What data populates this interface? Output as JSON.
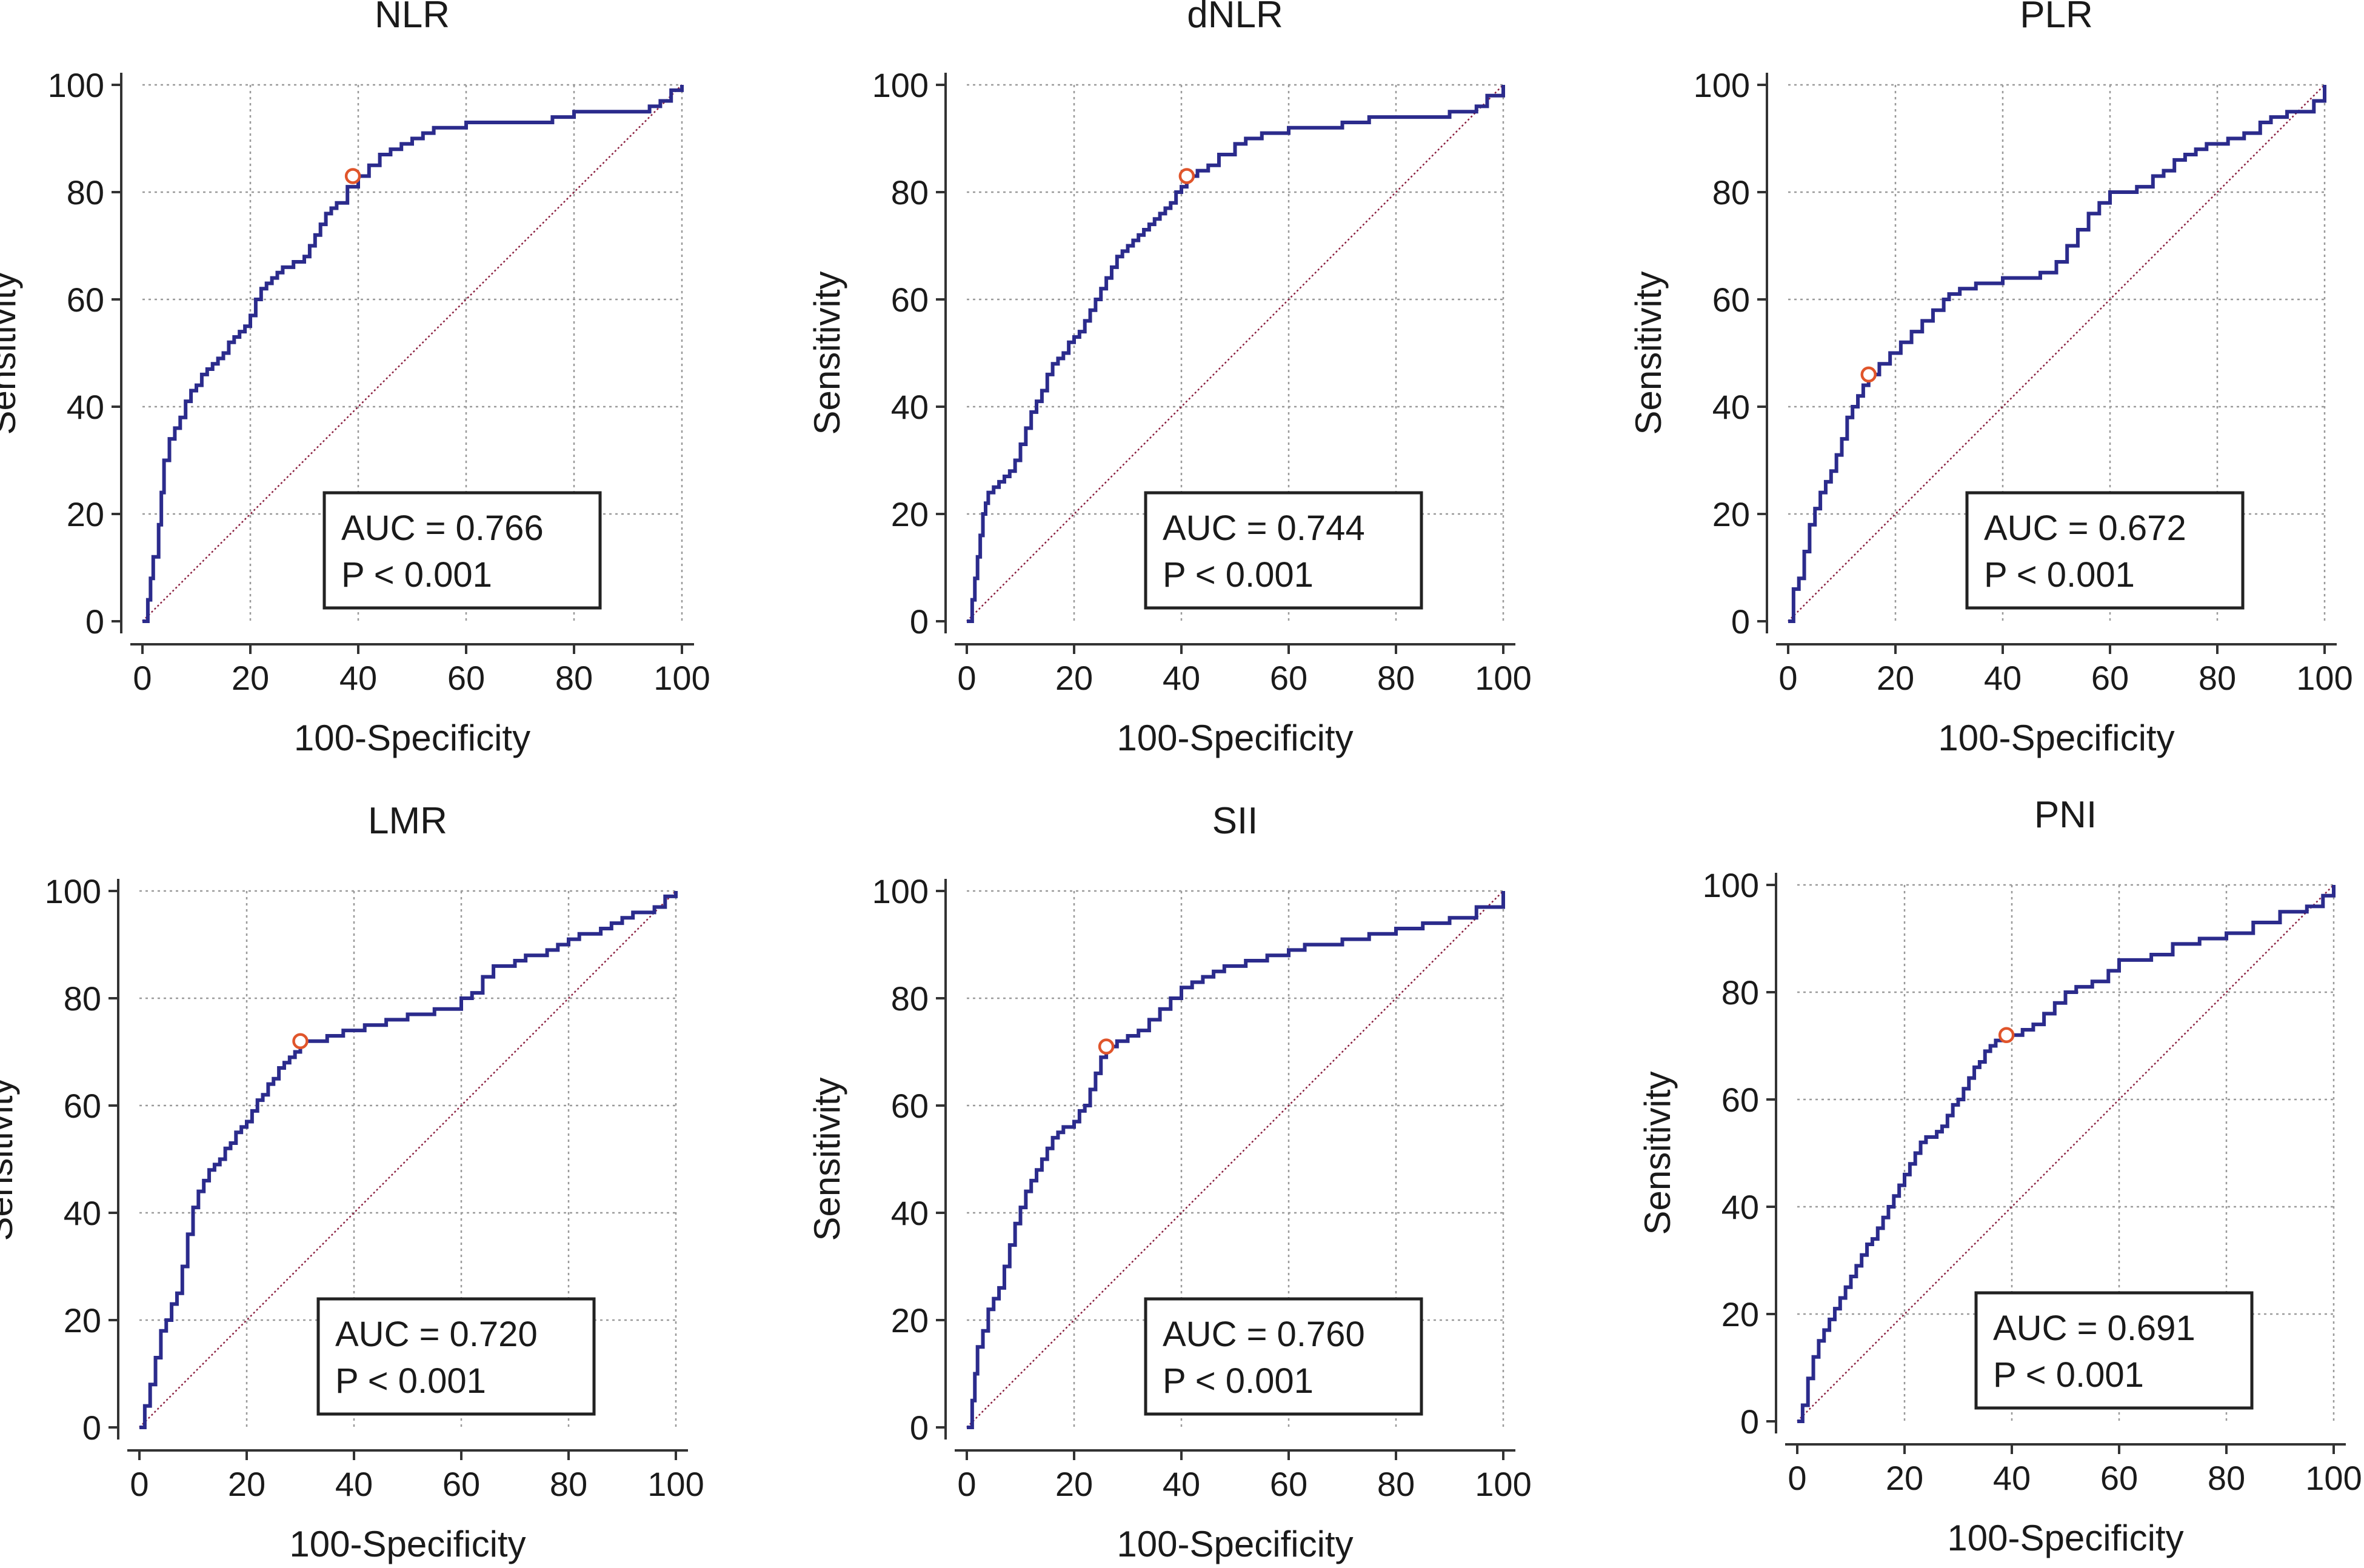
{
  "colors": {
    "roc": "#2b2b8c",
    "cutoff": "#e0552b",
    "diagonal": "#8b2040",
    "grid": "#9a9a9a",
    "axis": "#333333"
  },
  "chart_data": [
    {
      "type": "line",
      "title": "NLR",
      "xlabel": "100-Specificity",
      "ylabel": "Sensitivity",
      "xlim": [
        0,
        100
      ],
      "ylim": [
        0,
        100
      ],
      "xticks": [
        "0",
        "20",
        "40",
        "60",
        "80",
        "100"
      ],
      "yticks": [
        "0",
        "20",
        "40",
        "60",
        "80",
        "100"
      ],
      "auc_text": "AUC = 0.766",
      "p_text": "P < 0.001",
      "cutoff_point": {
        "x": 39,
        "y": 83
      },
      "series": [
        {
          "name": "ROC",
          "x": [
            0,
            1,
            1.5,
            2,
            3,
            3.5,
            4,
            5,
            6,
            7,
            8,
            9,
            10,
            11,
            12,
            13,
            14,
            15,
            16,
            17,
            18,
            19,
            20,
            21,
            22,
            23,
            24,
            25,
            26,
            27,
            28,
            30,
            31,
            32,
            33,
            34,
            35,
            36,
            38,
            40,
            42,
            44,
            46,
            48,
            50,
            52,
            54,
            56,
            60,
            62,
            64,
            68,
            72,
            76,
            80,
            84,
            88,
            90,
            92,
            94,
            96,
            98,
            100
          ],
          "y": [
            0,
            4,
            8,
            12,
            18,
            24,
            30,
            34,
            36,
            38,
            41,
            43,
            44,
            46,
            47,
            48,
            49,
            50,
            52,
            53,
            54,
            55,
            57,
            60,
            62,
            63,
            64,
            65,
            66,
            66,
            67,
            68,
            70,
            72,
            74,
            76,
            77,
            78,
            81,
            83,
            85,
            87,
            88,
            89,
            90,
            91,
            92,
            92,
            93,
            93,
            93,
            93,
            93,
            94,
            95,
            95,
            95,
            95,
            95,
            96,
            97,
            99,
            100
          ]
        }
      ]
    },
    {
      "type": "line",
      "title": "dNLR",
      "xlabel": "100-Specificity",
      "ylabel": "Sensitivity",
      "xlim": [
        0,
        100
      ],
      "ylim": [
        0,
        100
      ],
      "xticks": [
        "0",
        "20",
        "40",
        "60",
        "80",
        "100"
      ],
      "yticks": [
        "0",
        "20",
        "40",
        "60",
        "80",
        "100"
      ],
      "auc_text": "AUC = 0.744",
      "p_text": "P < 0.001",
      "cutoff_point": {
        "x": 41,
        "y": 83
      },
      "series": [
        {
          "name": "ROC",
          "x": [
            0,
            1,
            1.5,
            2,
            2.5,
            3,
            3.5,
            4,
            5,
            6,
            7,
            8,
            9,
            10,
            11,
            12,
            13,
            14,
            15,
            16,
            17,
            18,
            19,
            20,
            21,
            22,
            23,
            24,
            25,
            26,
            27,
            28,
            29,
            30,
            31,
            32,
            33,
            34,
            35,
            36,
            37,
            38,
            39,
            40,
            41,
            43,
            45,
            47,
            50,
            52,
            55,
            60,
            65,
            70,
            75,
            80,
            85,
            90,
            92,
            95,
            97,
            100
          ],
          "y": [
            0,
            4,
            8,
            12,
            16,
            20,
            22,
            24,
            25,
            26,
            27,
            28,
            30,
            33,
            36,
            39,
            41,
            43,
            46,
            48,
            49,
            50,
            52,
            53,
            54,
            56,
            58,
            60,
            62,
            64,
            66,
            68,
            69,
            70,
            71,
            72,
            73,
            74,
            75,
            76,
            77,
            78,
            80,
            81,
            83,
            84,
            85,
            87,
            89,
            90,
            91,
            92,
            92,
            93,
            94,
            94,
            94,
            95,
            95,
            96,
            98,
            100
          ]
        }
      ]
    },
    {
      "type": "line",
      "title": "PLR",
      "xlabel": "100-Specificity",
      "ylabel": "Sensitivity",
      "xlim": [
        0,
        100
      ],
      "ylim": [
        0,
        100
      ],
      "xticks": [
        "0",
        "20",
        "40",
        "60",
        "80",
        "100"
      ],
      "yticks": [
        "0",
        "20",
        "40",
        "60",
        "80",
        "100"
      ],
      "auc_text": "AUC = 0.672",
      "p_text": "P < 0.001",
      "cutoff_point": {
        "x": 15,
        "y": 46
      },
      "series": [
        {
          "name": "ROC",
          "x": [
            0,
            1,
            2,
            3,
            4,
            5,
            6,
            7,
            8,
            9,
            10,
            11,
            12,
            13,
            14,
            15,
            17,
            19,
            21,
            23,
            25,
            27,
            29,
            30,
            32,
            35,
            40,
            45,
            47,
            50,
            52,
            54,
            56,
            58,
            60,
            62,
            65,
            68,
            70,
            72,
            74,
            76,
            78,
            80,
            82,
            85,
            88,
            90,
            93,
            96,
            98,
            100
          ],
          "y": [
            0,
            6,
            8,
            13,
            18,
            21,
            24,
            26,
            28,
            31,
            34,
            38,
            40,
            42,
            44,
            46,
            48,
            50,
            52,
            54,
            56,
            58,
            60,
            61,
            62,
            63,
            64,
            64,
            65,
            67,
            70,
            73,
            76,
            78,
            80,
            80,
            81,
            83,
            84,
            86,
            87,
            88,
            89,
            89,
            90,
            91,
            93,
            94,
            95,
            95,
            97,
            100
          ]
        }
      ]
    },
    {
      "type": "line",
      "title": "LMR",
      "xlabel": "100-Specificity",
      "ylabel": "Sensitivity",
      "xlim": [
        0,
        100
      ],
      "ylim": [
        0,
        100
      ],
      "xticks": [
        "0",
        "20",
        "40",
        "60",
        "80",
        "100"
      ],
      "yticks": [
        "0",
        "20",
        "40",
        "60",
        "80",
        "100"
      ],
      "auc_text": "AUC = 0.720",
      "p_text": "P < 0.001",
      "cutoff_point": {
        "x": 30,
        "y": 72
      },
      "series": [
        {
          "name": "ROC",
          "x": [
            0,
            1,
            2,
            3,
            4,
            5,
            6,
            7,
            8,
            9,
            10,
            11,
            12,
            13,
            14,
            15,
            16,
            17,
            18,
            19,
            20,
            21,
            22,
            23,
            24,
            25,
            26,
            27,
            28,
            29,
            30,
            32,
            35,
            38,
            42,
            46,
            50,
            55,
            60,
            62,
            64,
            66,
            68,
            70,
            72,
            74,
            76,
            78,
            80,
            82,
            84,
            86,
            88,
            90,
            92,
            94,
            96,
            98,
            100
          ],
          "y": [
            0,
            4,
            8,
            13,
            18,
            20,
            23,
            25,
            30,
            36,
            41,
            44,
            46,
            48,
            49,
            50,
            52,
            53,
            55,
            56,
            57,
            59,
            61,
            62,
            64,
            65,
            67,
            68,
            69,
            70,
            72,
            72,
            73,
            74,
            75,
            76,
            77,
            78,
            80,
            81,
            84,
            86,
            86,
            87,
            88,
            88,
            89,
            90,
            91,
            92,
            92,
            93,
            94,
            95,
            96,
            96,
            97,
            99,
            100
          ]
        }
      ]
    },
    {
      "type": "line",
      "title": "SII",
      "xlabel": "100-Specificity",
      "ylabel": "Sensitivity",
      "xlim": [
        0,
        100
      ],
      "ylim": [
        0,
        100
      ],
      "xticks": [
        "0",
        "20",
        "40",
        "60",
        "80",
        "100"
      ],
      "yticks": [
        "0",
        "20",
        "40",
        "60",
        "80",
        "100"
      ],
      "auc_text": "AUC = 0.760",
      "p_text": "P < 0.001",
      "cutoff_point": {
        "x": 26,
        "y": 71
      },
      "series": [
        {
          "name": "ROC",
          "x": [
            0,
            1,
            1.5,
            2,
            3,
            4,
            5,
            6,
            7,
            8,
            9,
            10,
            11,
            12,
            13,
            14,
            15,
            16,
            17,
            18,
            19,
            20,
            21,
            22,
            23,
            24,
            25,
            26,
            28,
            30,
            32,
            34,
            36,
            38,
            40,
            42,
            44,
            46,
            48,
            50,
            52,
            54,
            56,
            58,
            60,
            63,
            66,
            70,
            75,
            80,
            85,
            90,
            95,
            100
          ],
          "y": [
            0,
            5,
            10,
            15,
            18,
            22,
            24,
            26,
            30,
            34,
            38,
            41,
            44,
            46,
            48,
            50,
            52,
            54,
            55,
            56,
            56,
            57,
            59,
            60,
            63,
            66,
            69,
            71,
            72,
            73,
            74,
            76,
            78,
            80,
            82,
            83,
            84,
            85,
            86,
            86,
            87,
            87,
            88,
            88,
            89,
            90,
            90,
            91,
            92,
            93,
            94,
            95,
            97,
            100
          ]
        }
      ]
    },
    {
      "type": "line",
      "title": "PNI",
      "xlabel": "100-Specificity",
      "ylabel": "Sensitivity",
      "xlim": [
        0,
        100
      ],
      "ylim": [
        0,
        100
      ],
      "xticks": [
        "0",
        "20",
        "40",
        "60",
        "80",
        "100"
      ],
      "yticks": [
        "0",
        "20",
        "40",
        "60",
        "80",
        "100"
      ],
      "auc_text": "AUC = 0.691",
      "p_text": "P < 0.001",
      "cutoff_point": {
        "x": 39,
        "y": 72
      },
      "series": [
        {
          "name": "ROC",
          "x": [
            0,
            1,
            2,
            3,
            4,
            5,
            6,
            7,
            8,
            9,
            10,
            11,
            12,
            13,
            14,
            15,
            16,
            17,
            18,
            19,
            20,
            21,
            22,
            23,
            24,
            25,
            26,
            27,
            28,
            29,
            30,
            31,
            32,
            33,
            34,
            35,
            36,
            37,
            38,
            39,
            40,
            42,
            44,
            46,
            48,
            50,
            52,
            55,
            58,
            60,
            63,
            66,
            70,
            75,
            80,
            85,
            90,
            95,
            98,
            100
          ],
          "y": [
            0,
            3,
            8,
            12,
            15,
            17,
            19,
            21,
            23,
            25,
            27,
            29,
            31,
            33,
            34,
            36,
            38,
            40,
            42,
            44,
            46,
            48,
            50,
            52,
            53,
            53,
            54,
            55,
            57,
            59,
            60,
            62,
            64,
            66,
            67,
            69,
            70,
            71,
            71,
            72,
            72,
            73,
            74,
            76,
            78,
            80,
            81,
            82,
            84,
            86,
            86,
            87,
            89,
            90,
            91,
            93,
            95,
            96,
            98,
            100
          ]
        }
      ]
    }
  ]
}
